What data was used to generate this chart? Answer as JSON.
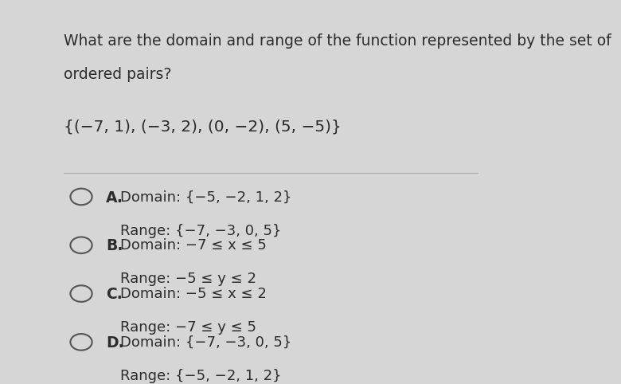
{
  "background_color": "#d6d6d6",
  "content_bg": "#d6d6d6",
  "question_line1": "What are the domain and range of the function represented by the set of",
  "question_line2": "ordered pairs?",
  "ordered_pairs": "{(−7, 1), (−3, 2), (0, −2), (5, −5)}",
  "options": [
    {
      "letter": "A.",
      "line1": "Domain: {−5, −2, 1, 2}",
      "line2": "Range: {−7, −3, 0, 5}"
    },
    {
      "letter": "B.",
      "line1": "Domain: −7 ≤ x ≤ 5",
      "line2": "Range: −5 ≤ y ≤ 2"
    },
    {
      "letter": "C.",
      "line1": "Domain: −5 ≤ x ≤ 2",
      "line2": "Range: −7 ≤ y ≤ 5"
    },
    {
      "letter": "D.",
      "line1": "Domain: {−7, −3, 0, 5}",
      "line2": "Range: {−5, −2, 1, 2}"
    }
  ],
  "question_fontsize": 13.5,
  "pairs_fontsize": 14.5,
  "option_letter_fontsize": 13.5,
  "option_text_fontsize": 13,
  "text_color": "#2c2c2c",
  "circle_color": "#555555",
  "divider_color": "#aaaaaa",
  "font_family": "sans-serif"
}
